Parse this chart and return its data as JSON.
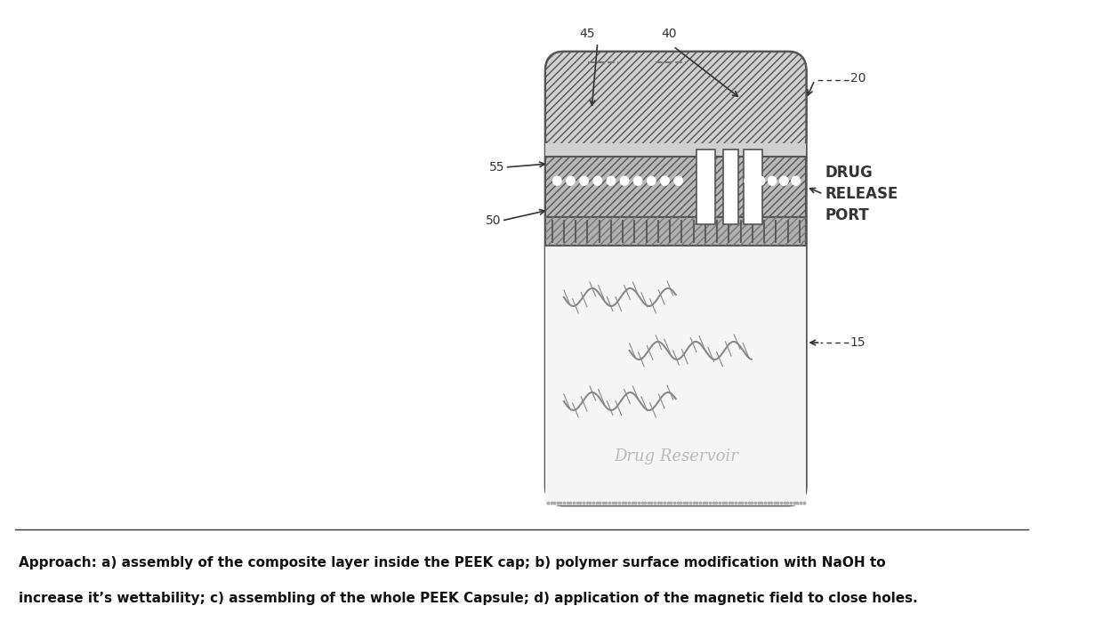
{
  "bg_color": "#ffffff",
  "caption_line1": "Approach: a) assembly of the composite layer inside the PEEK cap; b) polymer surface modification with NaOH to",
  "caption_line2": "increase it’s wettability; c) assembling of the whole PEEK Capsule; d) application of the magnetic field to close holes.",
  "label_20": "20",
  "label_40": "40",
  "label_45": "45",
  "label_55": "55",
  "label_50": "50",
  "label_15": "15",
  "label_drug_release_port": "DRUG\nRELEASE\nPORT",
  "label_drug_reservoir": "Drug Reservoir"
}
